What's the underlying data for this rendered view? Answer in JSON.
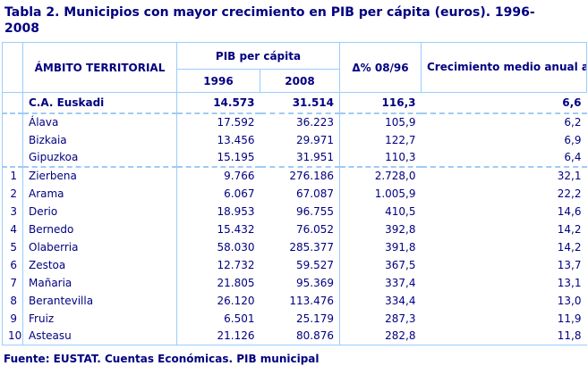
{
  "title": {
    "line1": "Tabla 2. Municipios con mayor crecimiento en PIB per cápita (euros). 1996-",
    "line2": "2008",
    "full": "Tabla 2. Municipios con mayor crecimiento en PIB per cápita (euros). 1996-2008"
  },
  "source": "Fuente: EUSTAT. Cuentas Económicas. PIB municipal",
  "colors": {
    "text_navy": "#000080",
    "border_blue": "#99ccff",
    "background": "#ffffff"
  },
  "table": {
    "headers": {
      "ambito": "ÁMBITO TERRITORIAL",
      "pib": "PIB per cápita",
      "y1996": "1996",
      "y2008": "2008",
      "delta": "Δ% 08/96",
      "crecimiento": "Crecimiento medio anual acumulativo (%)"
    },
    "rows": [
      {
        "rank": "",
        "name": "C.A. Euskadi",
        "pib1996": "14.573",
        "pib2008": "31.514",
        "delta": "116,3",
        "growth": "6,6"
      },
      {
        "rank": "",
        "name": "Álava",
        "pib1996": "17.592",
        "pib2008": "36.223",
        "delta": "105,9",
        "growth": "6,2"
      },
      {
        "rank": "",
        "name": "Bizkaia",
        "pib1996": "13.456",
        "pib2008": "29.971",
        "delta": "122,7",
        "growth": "6,9"
      },
      {
        "rank": "",
        "name": "Gipuzkoa",
        "pib1996": "15.195",
        "pib2008": "31.951",
        "delta": "110,3",
        "growth": "6,4"
      },
      {
        "rank": "1",
        "name": "Zierbena",
        "pib1996": "9.766",
        "pib2008": "276.186",
        "delta": "2.728,0",
        "growth": "32,1"
      },
      {
        "rank": "2",
        "name": "Arama",
        "pib1996": "6.067",
        "pib2008": "67.087",
        "delta": "1.005,9",
        "growth": "22,2"
      },
      {
        "rank": "3",
        "name": "Derio",
        "pib1996": "18.953",
        "pib2008": "96.755",
        "delta": "410,5",
        "growth": "14,6"
      },
      {
        "rank": "4",
        "name": "Bernedo",
        "pib1996": "15.432",
        "pib2008": "76.052",
        "delta": "392,8",
        "growth": "14,2"
      },
      {
        "rank": "5",
        "name": "Olaberria",
        "pib1996": "58.030",
        "pib2008": "285.377",
        "delta": "391,8",
        "growth": "14,2"
      },
      {
        "rank": "6",
        "name": "Zestoa",
        "pib1996": "12.732",
        "pib2008": "59.527",
        "delta": "367,5",
        "growth": "13,7"
      },
      {
        "rank": "7",
        "name": "Mañaria",
        "pib1996": "21.805",
        "pib2008": "95.369",
        "delta": "337,4",
        "growth": "13,1"
      },
      {
        "rank": "8",
        "name": "Berantevilla",
        "pib1996": "26.120",
        "pib2008": "113.476",
        "delta": "334,4",
        "growth": "13,0"
      },
      {
        "rank": "9",
        "name": "Fruiz",
        "pib1996": "6.501",
        "pib2008": "25.179",
        "delta": "287,3",
        "growth": "11,9"
      },
      {
        "rank": "10",
        "name": "Asteasu",
        "pib1996": "21.126",
        "pib2008": "80.876",
        "delta": "282,8",
        "growth": "11,8"
      }
    ]
  },
  "chart_data": {
    "type": "table",
    "title": "Tabla 2. Municipios con mayor crecimiento en PIB per cápita (euros). 1996-2008",
    "columns": [
      "ÁMBITO TERRITORIAL",
      "PIB per cápita 1996",
      "PIB per cápita 2008",
      "Δ% 08/96",
      "Crecimiento medio anual acumulativo (%)"
    ],
    "rows": [
      [
        "C.A. Euskadi",
        14573,
        31514,
        116.3,
        6.6
      ],
      [
        "Álava",
        17592,
        36223,
        105.9,
        6.2
      ],
      [
        "Bizkaia",
        13456,
        29971,
        122.7,
        6.9
      ],
      [
        "Gipuzkoa",
        15195,
        31951,
        110.3,
        6.4
      ],
      [
        "Zierbena",
        9766,
        276186,
        2728.0,
        32.1
      ],
      [
        "Arama",
        6067,
        67087,
        1005.9,
        22.2
      ],
      [
        "Derio",
        18953,
        96755,
        410.5,
        14.6
      ],
      [
        "Bernedo",
        15432,
        76052,
        392.8,
        14.2
      ],
      [
        "Olaberria",
        58030,
        285377,
        391.8,
        14.2
      ],
      [
        "Zestoa",
        12732,
        59527,
        367.5,
        13.7
      ],
      [
        "Mañaria",
        21805,
        95369,
        337.4,
        13.1
      ],
      [
        "Berantevilla",
        26120,
        113476,
        334.4,
        13.0
      ],
      [
        "Fruiz",
        6501,
        25179,
        287.3,
        11.9
      ],
      [
        "Asteasu",
        21126,
        80876,
        282.8,
        11.8
      ]
    ],
    "source": "Fuente: EUSTAT. Cuentas Económicas. PIB municipal"
  }
}
